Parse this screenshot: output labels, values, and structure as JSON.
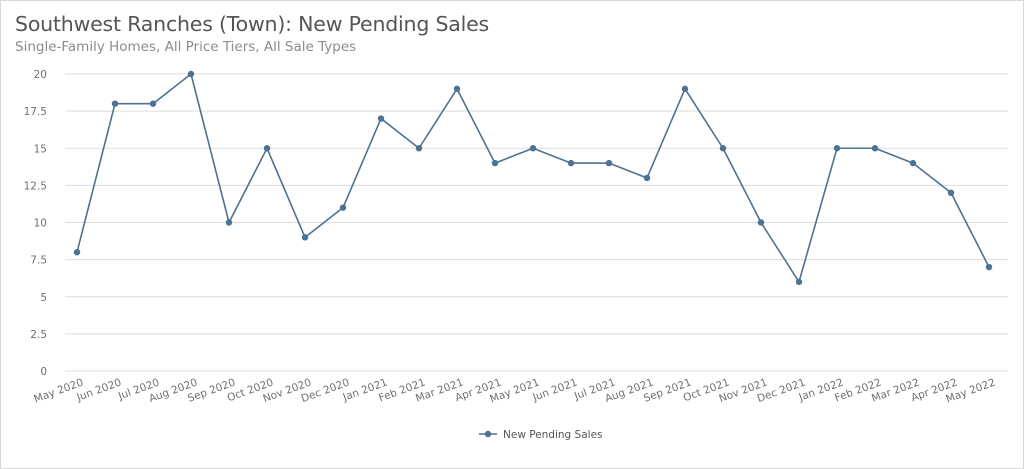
{
  "chart_data": {
    "type": "line",
    "title": "Southwest Ranches (Town): New Pending Sales",
    "subtitle": "Single-Family Homes, All Price Tiers, All Sale Types",
    "categories": [
      "May 2020",
      "Jun 2020",
      "Jul 2020",
      "Aug 2020",
      "Sep 2020",
      "Oct 2020",
      "Nov 2020",
      "Dec 2020",
      "Jan 2021",
      "Feb 2021",
      "Mar 2021",
      "Apr 2021",
      "May 2021",
      "Jun 2021",
      "Jul 2021",
      "Aug 2021",
      "Sep 2021",
      "Oct 2021",
      "Nov 2021",
      "Dec 2021",
      "Jan 2022",
      "Feb 2022",
      "Mar 2022",
      "Apr 2022",
      "May 2022"
    ],
    "series": [
      {
        "name": "New Pending Sales",
        "values": [
          8,
          18,
          18,
          20,
          10,
          15,
          9,
          11,
          17,
          15,
          19,
          14,
          15,
          14,
          14,
          13,
          19,
          15,
          10,
          6,
          15,
          15,
          14,
          12,
          7
        ]
      }
    ],
    "y_ticks": [
      "0",
      "2.5",
      "5",
      "7.5",
      "10",
      "12.5",
      "15",
      "17.5",
      "20"
    ],
    "ylim": [
      0,
      20
    ],
    "xlabel": "",
    "ylabel": "",
    "grid": true,
    "legend": "bottom-center",
    "colors": {
      "series": "#4e7293",
      "grid": "#dddddd",
      "text": "#707070"
    }
  }
}
